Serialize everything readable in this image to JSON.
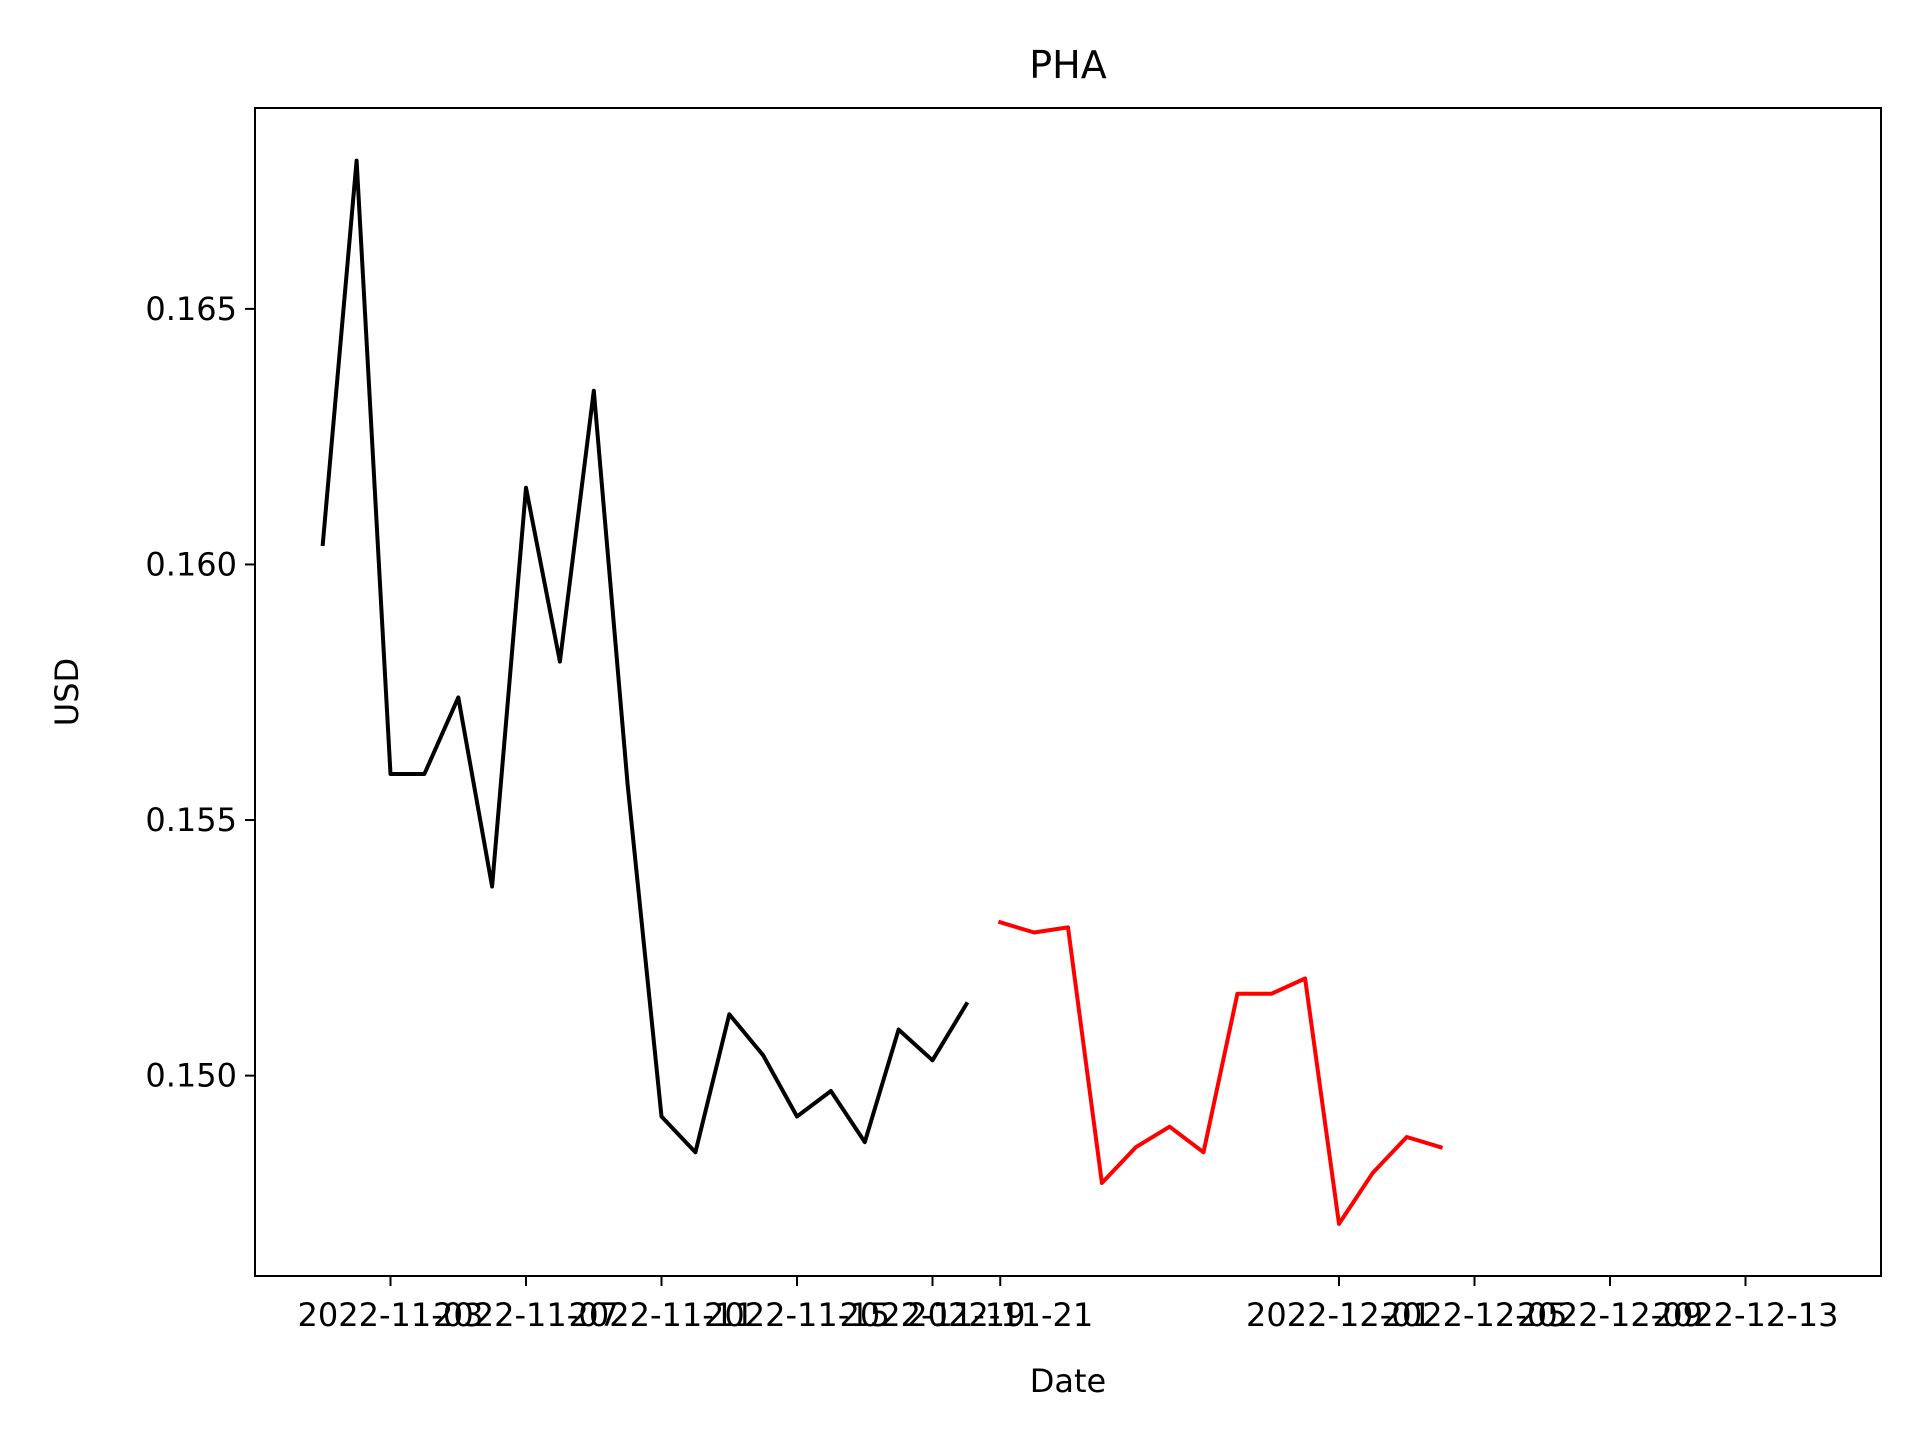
{
  "chart_data": {
    "type": "line",
    "title": "PHA",
    "xlabel": "Date",
    "ylabel": "USD",
    "xlim": [
      "2022-10-30",
      "2022-12-17"
    ],
    "ylim": [
      0.14608,
      0.16893
    ],
    "grid": false,
    "legend": "none",
    "x_ticks": [
      "2022-11-03",
      "2022-11-07",
      "2022-11-11",
      "2022-11-15",
      "2022-11-19",
      "2022-11-21",
      "2022-12-01",
      "2022-12-05",
      "2022-12-09",
      "2022-12-13"
    ],
    "y_ticks": [
      0.15,
      0.155,
      0.16,
      0.165
    ],
    "y_tick_labels": [
      "0.150",
      "0.155",
      "0.160",
      "0.165"
    ],
    "series": [
      {
        "color": "#000000",
        "points": [
          [
            "2022-11-01",
            0.1604
          ],
          [
            "2022-11-02",
            0.1679
          ],
          [
            "2022-11-03",
            0.1559
          ],
          [
            "2022-11-04",
            0.1559
          ],
          [
            "2022-11-05",
            0.1574
          ],
          [
            "2022-11-06",
            0.1537
          ],
          [
            "2022-11-07",
            0.1615
          ],
          [
            "2022-11-08",
            0.1581
          ],
          [
            "2022-11-09",
            0.1634
          ],
          [
            "2022-11-10",
            0.1557
          ],
          [
            "2022-11-11",
            0.1492
          ],
          [
            "2022-11-12",
            0.1485
          ],
          [
            "2022-11-13",
            0.1512
          ],
          [
            "2022-11-14",
            0.1504
          ],
          [
            "2022-11-15",
            0.1492
          ],
          [
            "2022-11-16",
            0.1497
          ],
          [
            "2022-11-17",
            0.1487
          ],
          [
            "2022-11-18",
            0.1509
          ],
          [
            "2022-11-19",
            0.1503
          ],
          [
            "2022-11-20",
            0.1514
          ]
        ]
      },
      {
        "color": "#ff0000",
        "points": [
          [
            "2022-11-21",
            0.153
          ],
          [
            "2022-11-22",
            0.1528
          ],
          [
            "2022-11-23",
            0.1529
          ],
          [
            "2022-11-24",
            0.1479
          ],
          [
            "2022-11-25",
            0.1486
          ],
          [
            "2022-11-26",
            0.149
          ],
          [
            "2022-11-27",
            0.1485
          ],
          [
            "2022-11-28",
            0.1516
          ],
          [
            "2022-11-29",
            0.1516
          ],
          [
            "2022-11-30",
            0.1519
          ],
          [
            "2022-12-01",
            0.1471
          ],
          [
            "2022-12-02",
            0.1481
          ],
          [
            "2022-12-03",
            0.1488
          ],
          [
            "2022-12-04",
            0.1486
          ]
        ]
      }
    ]
  }
}
